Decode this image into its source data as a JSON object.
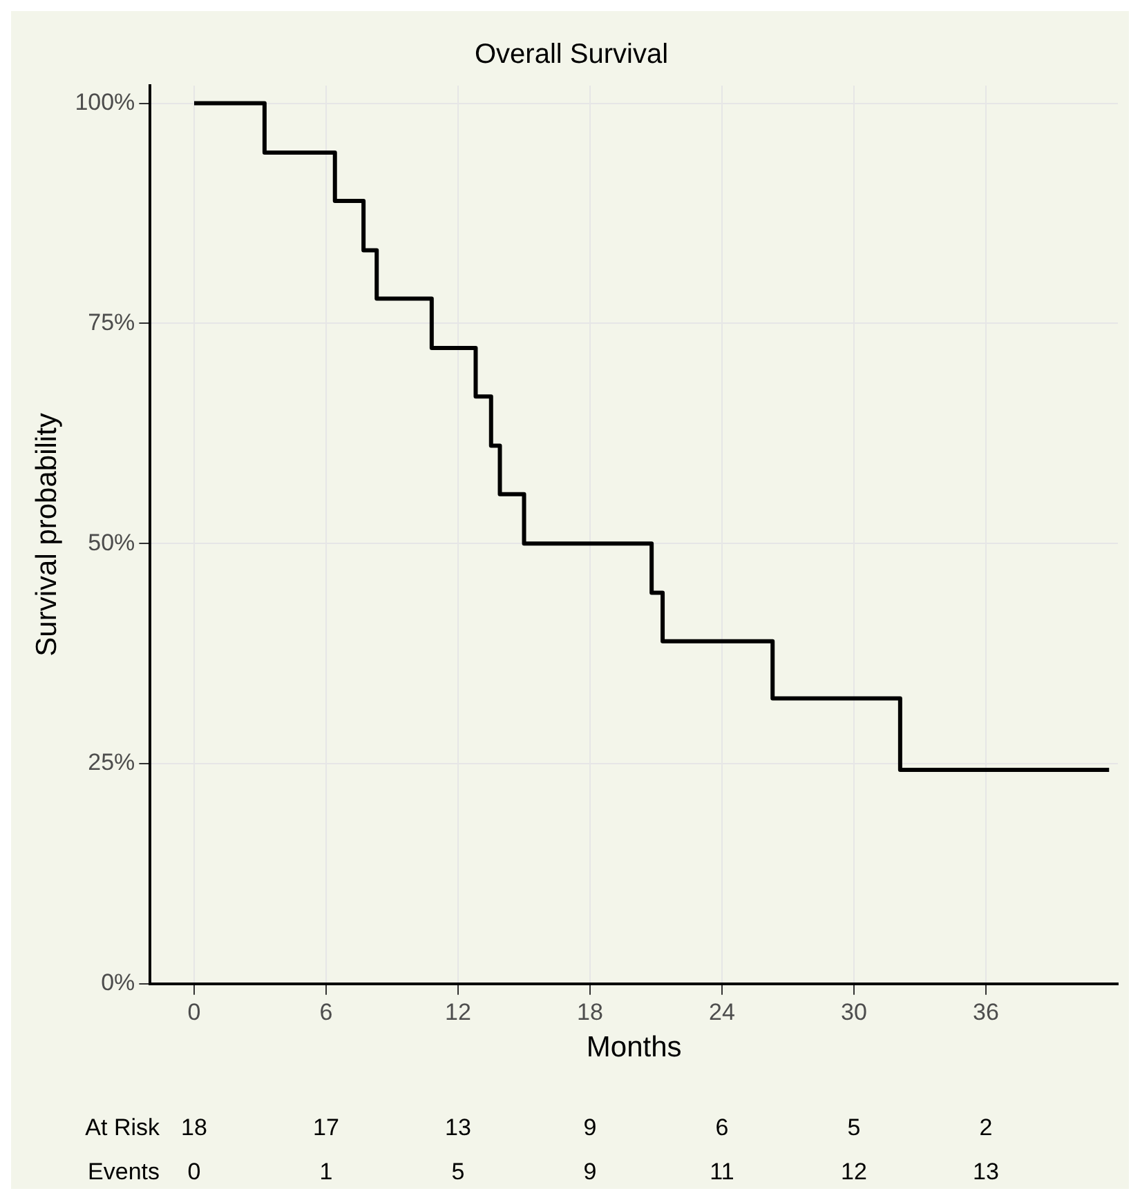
{
  "chart_data": {
    "type": "step",
    "title": "Overall Survival",
    "xlabel": "Months",
    "ylabel": "Survival probability",
    "x": [
      0,
      3.2,
      6.4,
      7.7,
      8.3,
      10.8,
      12.8,
      13.5,
      13.9,
      15.0,
      20.8,
      21.3,
      26.3,
      32.1,
      41.6
    ],
    "series": [
      {
        "color": "#000000",
        "values": [
          100,
          94.4,
          88.9,
          83.3,
          77.8,
          72.2,
          66.7,
          61.1,
          55.6,
          50,
          44.4,
          38.9,
          32.4,
          24.3,
          24.3
        ]
      }
    ],
    "xlim": [
      -2,
      42
    ],
    "xticks": [
      0,
      6,
      12,
      18,
      24,
      30,
      36
    ],
    "ylim": [
      0,
      102
    ],
    "yticks": [
      {
        "value": 0,
        "label": "0%"
      },
      {
        "value": 25,
        "label": "25%"
      },
      {
        "value": 50,
        "label": "50%"
      },
      {
        "value": 75,
        "label": "75%"
      },
      {
        "value": 100,
        "label": "100%"
      }
    ],
    "grid": true,
    "legend": false,
    "marker": "none",
    "line_style": "solid",
    "annotations": [
      "At Risk",
      "18",
      "17",
      "13",
      "9",
      "6",
      "5",
      "2",
      "Events",
      "0",
      "1",
      "5",
      "9",
      "11",
      "12",
      "13"
    ]
  }
}
